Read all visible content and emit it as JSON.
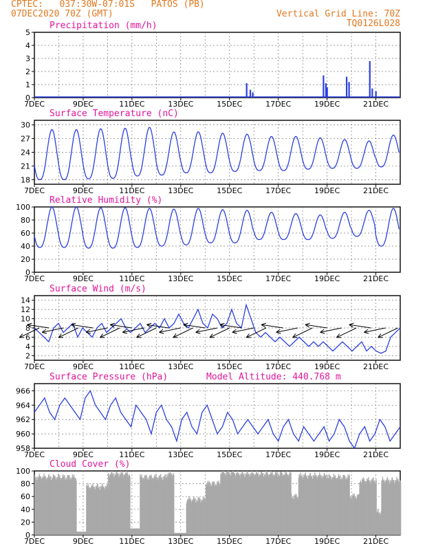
{
  "header": {
    "line1": "CPTEC:   037:30W-07:01S   PATOS (PB)",
    "line2": "07DEC2020 70Z (GMT)",
    "right1": "Vertical Grid Line: 70Z",
    "right2": "TQ0126L028"
  },
  "colors": {
    "header": "#e07820",
    "title": "#e0149a",
    "line": "#2a3fe0",
    "cloud": "#a9a9a9"
  },
  "x_labels": [
    "7DEC",
    "9DEC",
    "11DEC",
    "13DEC",
    "15DEC",
    "17DEC",
    "19DEC",
    "21DEC"
  ],
  "chart_data": [
    {
      "type": "bar",
      "title": "Precipitation (mm/h)",
      "ylim": [
        0,
        5
      ],
      "yticks": [
        0,
        1,
        2,
        3,
        4,
        5
      ],
      "events": [
        {
          "day": 15.7,
          "value": 1.1
        },
        {
          "day": 15.85,
          "value": 0.6
        },
        {
          "day": 15.95,
          "value": 0.4
        },
        {
          "day": 18.85,
          "value": 1.7
        },
        {
          "day": 18.95,
          "value": 1.1
        },
        {
          "day": 19.0,
          "value": 0.8
        },
        {
          "day": 19.8,
          "value": 1.6
        },
        {
          "day": 19.9,
          "value": 1.2
        },
        {
          "day": 20.75,
          "value": 2.8
        },
        {
          "day": 20.85,
          "value": 0.7
        },
        {
          "day": 21.0,
          "value": 0.5
        }
      ]
    },
    {
      "type": "line",
      "title": "Surface Temperature (nC)",
      "ylim": [
        17,
        31
      ],
      "yticks": [
        18,
        21,
        24,
        27,
        30
      ],
      "maxima": [
        29,
        29,
        29.2,
        29.3,
        29.5,
        28.5,
        28.5,
        28.2,
        28,
        27.5,
        27.5,
        27.2,
        26.8,
        26.5,
        27.8
      ],
      "minima": [
        18,
        18,
        18.2,
        18.3,
        18.8,
        19,
        19.5,
        19.5,
        19.8,
        20,
        20,
        20.3,
        20.5,
        20.5,
        20.8
      ]
    },
    {
      "type": "line",
      "title": "Relative Humidity (%)",
      "ylim": [
        0,
        100
      ],
      "yticks": [
        0,
        20,
        40,
        60,
        80,
        100
      ],
      "maxima": [
        100,
        100,
        99,
        99,
        98,
        97,
        98,
        96,
        95,
        92,
        90,
        88,
        92,
        95,
        98
      ],
      "minima": [
        38,
        38,
        37,
        37,
        38,
        40,
        42,
        45,
        45,
        50,
        50,
        50,
        52,
        55,
        40
      ]
    },
    {
      "type": "line",
      "title": "Surface Wind (m/s)",
      "ylim": [
        1,
        15
      ],
      "yticks": [
        2,
        4,
        6,
        8,
        10,
        12,
        14
      ],
      "values": [
        8,
        7,
        6,
        5,
        8,
        9,
        7,
        8,
        9,
        6,
        8,
        7,
        6,
        8,
        9,
        7,
        8,
        9,
        10,
        8,
        7,
        8,
        9,
        7,
        8,
        9,
        8,
        10,
        8,
        9,
        11,
        9,
        8,
        10,
        12,
        9,
        8,
        11,
        10,
        8,
        9,
        12,
        9,
        8,
        13,
        10,
        7,
        6,
        7,
        6,
        5,
        6,
        5,
        4,
        5,
        6,
        5,
        4,
        5,
        4,
        5,
        4,
        3,
        4,
        5,
        4,
        3,
        4,
        5,
        3,
        4,
        3,
        2.5,
        3,
        6,
        7,
        8
      ],
      "arrow_days": [
        7.2,
        7.6,
        8.2,
        8.8,
        9.4,
        10.0,
        10.5,
        11.0,
        11.5,
        12.0,
        12.5,
        13.0,
        13.5,
        14.0,
        14.5,
        15.0,
        15.5,
        16.0,
        16.5,
        17.2,
        17.8,
        18.4,
        19.0,
        19.6,
        20.2,
        20.8,
        21.4,
        21.9
      ]
    },
    {
      "type": "line",
      "title": "Surface Pressure (hPa)",
      "annotation": "Model Altitude: 440.768 m",
      "ylim": [
        958,
        967
      ],
      "yticks": [
        958,
        960,
        962,
        964,
        966
      ],
      "values": [
        963,
        964,
        965,
        963,
        962,
        964,
        965,
        964,
        963,
        962,
        965,
        966,
        964,
        963,
        962,
        964,
        965,
        963,
        962,
        961,
        964,
        963,
        962,
        960,
        963,
        964,
        962,
        961,
        959,
        962,
        963,
        961,
        960,
        963,
        964,
        962,
        960,
        961,
        963,
        962,
        960,
        961,
        962,
        961,
        960,
        961,
        962,
        960,
        959,
        961,
        962,
        960,
        959,
        961,
        960,
        959,
        960,
        961,
        959,
        960,
        962,
        961,
        959,
        958,
        960,
        961,
        959,
        960,
        962,
        961,
        959,
        960,
        961
      ],
      "raw_spacing": 0.2
    },
    {
      "type": "bar",
      "title": "Cloud Cover (%)",
      "ylim": [
        0,
        100
      ],
      "yticks": [
        0,
        20,
        40,
        60,
        80,
        100
      ],
      "profile": [
        {
          "from": 7.0,
          "to": 8.7,
          "value": 90
        },
        {
          "from": 8.7,
          "to": 9.1,
          "value": 5
        },
        {
          "from": 9.1,
          "to": 10.0,
          "value": 75
        },
        {
          "from": 10.0,
          "to": 10.9,
          "value": 95
        },
        {
          "from": 10.9,
          "to": 11.3,
          "value": 10
        },
        {
          "from": 11.3,
          "to": 12.4,
          "value": 90
        },
        {
          "from": 12.4,
          "to": 12.7,
          "value": 95
        },
        {
          "from": 12.7,
          "to": 13.2,
          "value": 3
        },
        {
          "from": 13.2,
          "to": 14.0,
          "value": 55
        },
        {
          "from": 14.0,
          "to": 14.6,
          "value": 80
        },
        {
          "from": 14.6,
          "to": 15.2,
          "value": 97
        },
        {
          "from": 15.2,
          "to": 17.5,
          "value": 95
        },
        {
          "from": 17.5,
          "to": 17.8,
          "value": 60
        },
        {
          "from": 17.8,
          "to": 19.0,
          "value": 92
        },
        {
          "from": 19.0,
          "to": 19.9,
          "value": 90
        },
        {
          "from": 19.9,
          "to": 20.3,
          "value": 60
        },
        {
          "from": 20.3,
          "to": 21.0,
          "value": 85
        },
        {
          "from": 21.0,
          "to": 21.2,
          "value": 35
        },
        {
          "from": 21.2,
          "to": 22.0,
          "value": 85
        }
      ]
    }
  ]
}
